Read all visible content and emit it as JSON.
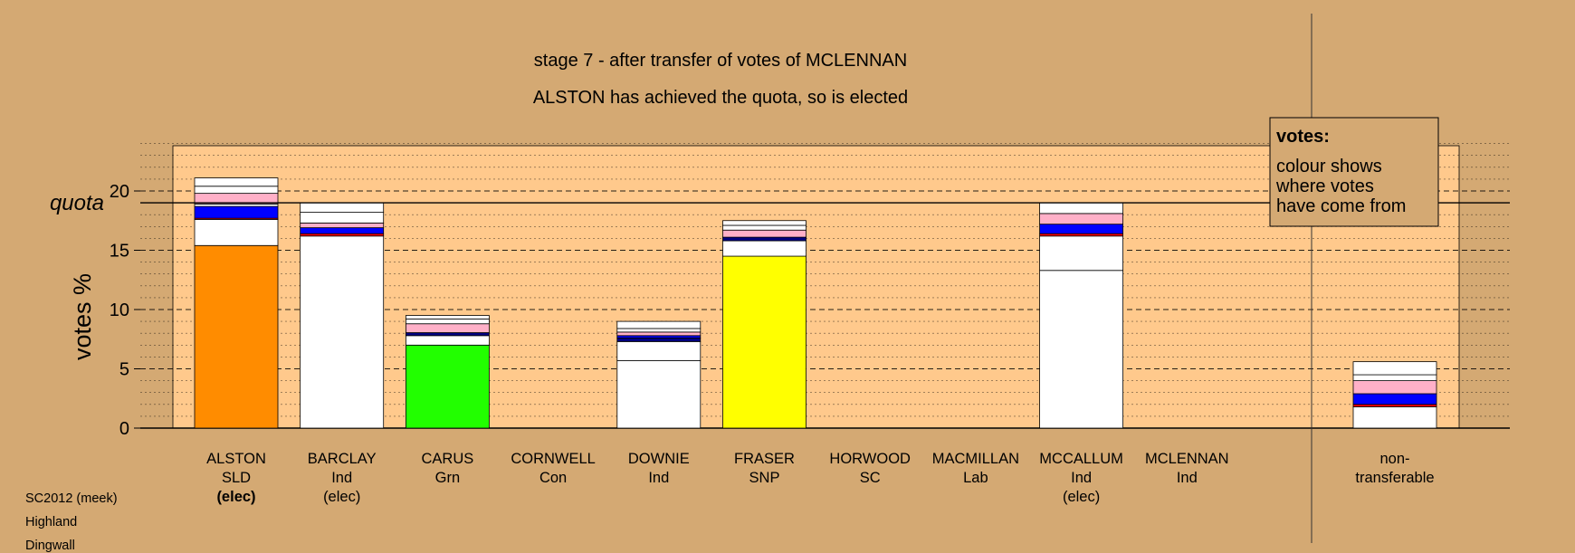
{
  "chart_data": {
    "type": "bar",
    "subtype": "stacked",
    "title": "stage 7 - after transfer of votes of MCLENNAN",
    "subtitle": "ALSTON has achieved the quota, so is elected",
    "ylabel": "votes %",
    "ylim": [
      0,
      24
    ],
    "yticks": [
      "0",
      "5",
      "10",
      "15",
      "20"
    ],
    "quota": 19.0,
    "quota_label": "quota",
    "grid": "dashed every 5, dotted minor",
    "colors": {
      "background": "#d4a973",
      "plot_background": "#ffc98c",
      "SLD": "#ff8c00",
      "Ind": "#ffffff",
      "Grn": "#22ff00",
      "SNP": "#ffff00",
      "Lab": "#ff0000",
      "Con": "#0000ff",
      "transfer_pink": "#ffb0c8",
      "transfer_blue": "#0000ff",
      "transfer_navy": "#000080",
      "transfer_red": "#ff0000"
    },
    "candidates": [
      {
        "name": "ALSTON",
        "party": "SLD",
        "status": "(elec)",
        "status_bold": true,
        "segments": [
          {
            "color": "#ff8c00",
            "value": 15.4
          },
          {
            "color": "#ffffff",
            "value": 2.2
          },
          {
            "color": "#ff0000",
            "value": 0.1
          },
          {
            "color": "#0000ff",
            "value": 1.0
          },
          {
            "color": "#ffffff",
            "value": 0.2
          },
          {
            "color": "#ffb0c8",
            "value": 0.9
          },
          {
            "color": "#ffffff",
            "value": 0.6
          },
          {
            "color": "#ffffff",
            "value": 0.7
          }
        ]
      },
      {
        "name": "BARCLAY",
        "party": "Ind",
        "status": "(elec)",
        "status_bold": false,
        "segments": [
          {
            "color": "#ffffff",
            "value": 16.2
          },
          {
            "color": "#ff0000",
            "value": 0.2
          },
          {
            "color": "#0000ff",
            "value": 0.5
          },
          {
            "color": "#ffb0c8",
            "value": 0.4
          },
          {
            "color": "#ffffff",
            "value": 0.9
          },
          {
            "color": "#ffffff",
            "value": 0.8
          }
        ]
      },
      {
        "name": "CARUS",
        "party": "Grn",
        "status": "",
        "segments": [
          {
            "color": "#22ff00",
            "value": 7.0
          },
          {
            "color": "#ffffff",
            "value": 0.8
          },
          {
            "color": "#000080",
            "value": 0.25
          },
          {
            "color": "#ffb0c8",
            "value": 0.75
          },
          {
            "color": "#ffffff",
            "value": 0.4
          },
          {
            "color": "#ffffff",
            "value": 0.3
          }
        ]
      },
      {
        "name": "CORNWELL",
        "party": "Con",
        "status": "",
        "segments": []
      },
      {
        "name": "DOWNIE",
        "party": "Ind",
        "status": "",
        "segments": [
          {
            "color": "#ffffff",
            "value": 5.7
          },
          {
            "color": "#ffffff",
            "value": 1.6
          },
          {
            "color": "#000080",
            "value": 0.3
          },
          {
            "color": "#0000ff",
            "value": 0.2
          },
          {
            "color": "#ffb0c8",
            "value": 0.3
          },
          {
            "color": "#ffffff",
            "value": 0.3
          },
          {
            "color": "#ffffff",
            "value": 0.6
          }
        ]
      },
      {
        "name": "FRASER",
        "party": "SNP",
        "status": "",
        "segments": [
          {
            "color": "#ffff00",
            "value": 14.5
          },
          {
            "color": "#ffffff",
            "value": 1.3
          },
          {
            "color": "#000080",
            "value": 0.3
          },
          {
            "color": "#ffb0c8",
            "value": 0.6
          },
          {
            "color": "#ffffff",
            "value": 0.4
          },
          {
            "color": "#ffffff",
            "value": 0.4
          }
        ]
      },
      {
        "name": "HORWOOD",
        "party": "SC",
        "status": "",
        "segments": []
      },
      {
        "name": "MACMILLAN",
        "party": "Lab",
        "status": "",
        "segments": []
      },
      {
        "name": "MCCALLUM",
        "party": "Ind",
        "status": "(elec)",
        "status_bold": false,
        "segments": [
          {
            "color": "#ffffff",
            "value": 13.3
          },
          {
            "color": "#ffffff",
            "value": 2.9
          },
          {
            "color": "#ff0000",
            "value": 0.2
          },
          {
            "color": "#0000ff",
            "value": 0.8
          },
          {
            "color": "#ffb0c8",
            "value": 0.9
          },
          {
            "color": "#ffffff",
            "value": 0.9
          }
        ]
      },
      {
        "name": "MCLENNAN",
        "party": "Ind",
        "status": "",
        "segments": []
      }
    ],
    "nontransferable": {
      "label_line1": "non-",
      "label_line2": "transferable",
      "segments": [
        {
          "color": "#ffffff",
          "value": 1.8
        },
        {
          "color": "#ff0000",
          "value": 0.2
        },
        {
          "color": "#0000ff",
          "value": 0.9
        },
        {
          "color": "#ffb0c8",
          "value": 1.1
        },
        {
          "color": "#ffffff",
          "value": 0.5
        },
        {
          "color": "#ffffff",
          "value": 1.1
        }
      ]
    },
    "legend": {
      "title": "votes:",
      "lines": [
        "colour shows",
        "where votes",
        "have come from"
      ],
      "placement": "top-right"
    }
  },
  "footer": {
    "line1": "SC2012 (meek)",
    "line2": "Highland",
    "line3": "Dingwall"
  }
}
